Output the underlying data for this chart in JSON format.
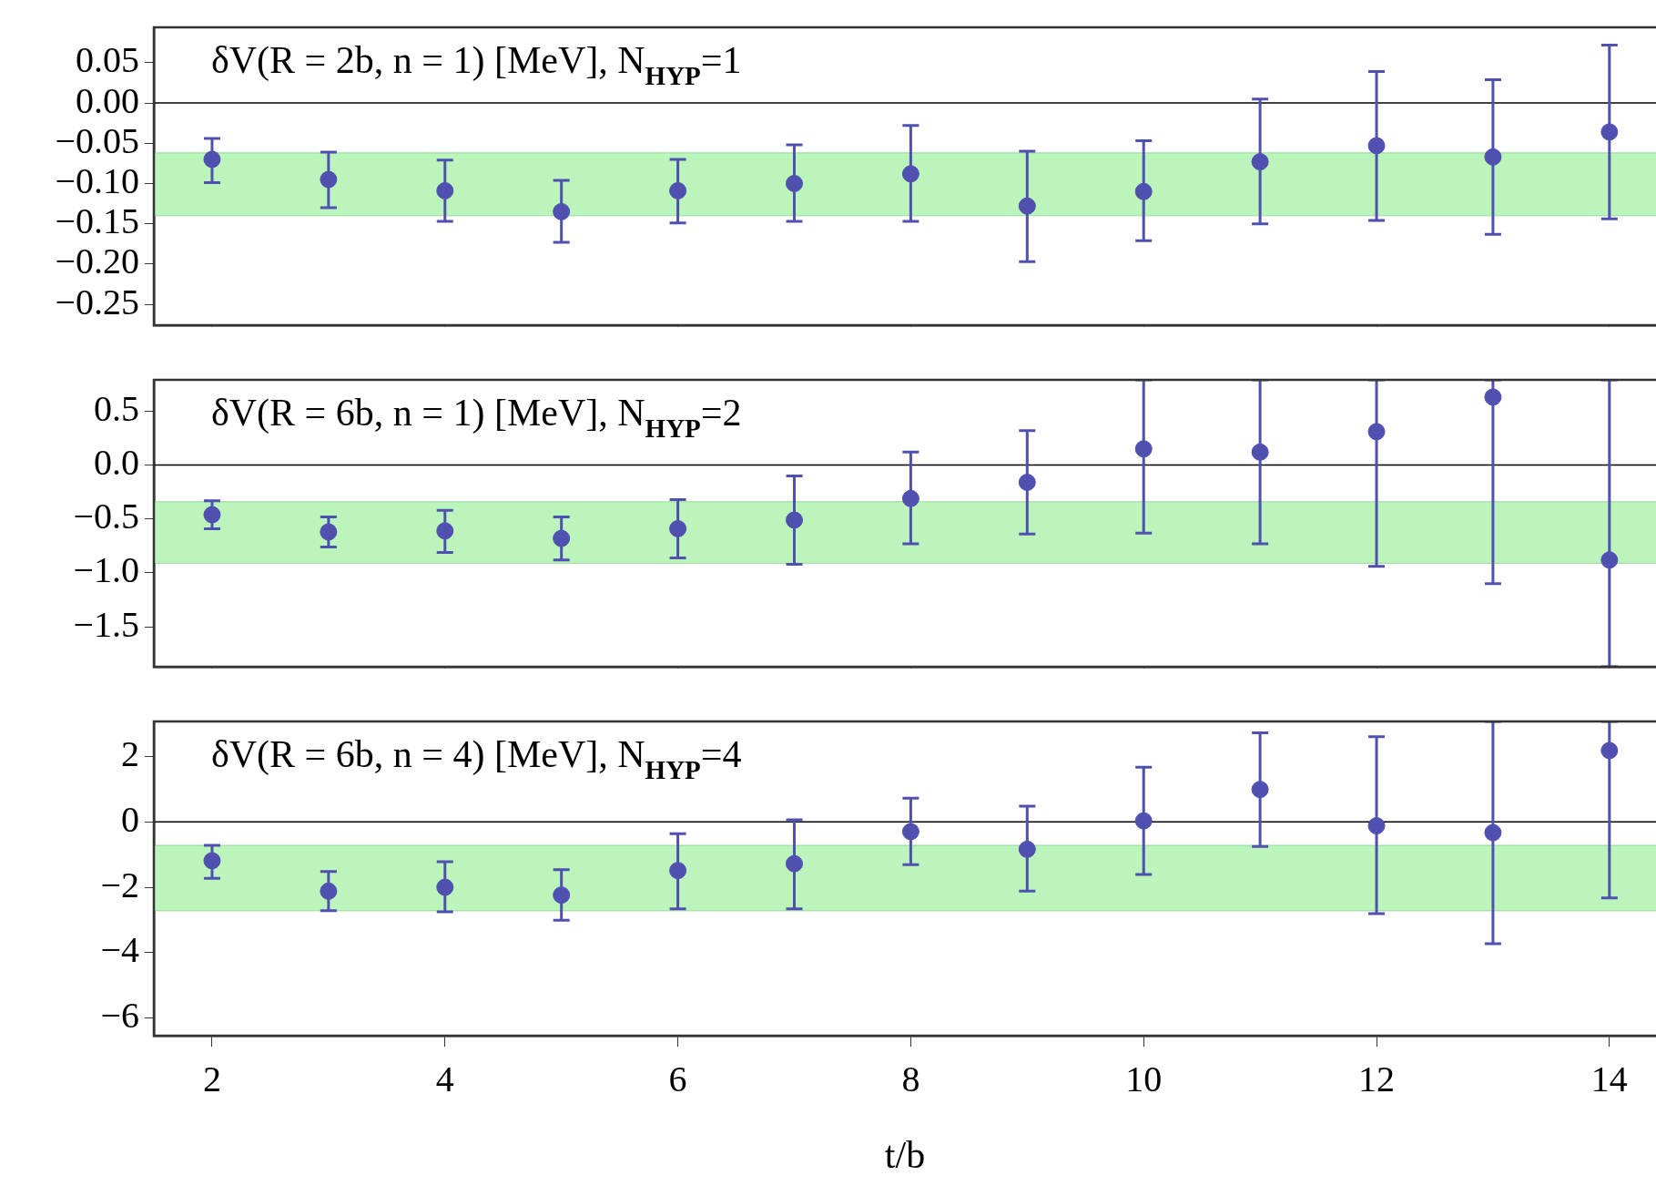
{
  "chart_data": [
    {
      "type": "scatter",
      "title": "δV(R = 2b, n = 1) [MeV], N$_{HYP}$=1",
      "xlim": [
        1.5,
        14.4
      ],
      "xticks": [
        2,
        4,
        6,
        8,
        10,
        12,
        14
      ],
      "ylim": [
        -0.276,
        0.094
      ],
      "yticks": [
        {
          "value": 0.05,
          "label": "0.05"
        },
        {
          "value": 0,
          "label": "0.00"
        },
        {
          "value": -0.05,
          "label": "−0.05"
        },
        {
          "value": -0.1,
          "label": "−0.10"
        },
        {
          "value": -0.15,
          "label": "−0.15"
        },
        {
          "value": -0.2,
          "label": "−0.20"
        },
        {
          "value": -0.25,
          "label": "−0.25"
        }
      ],
      "tick_labels": "y",
      "marker": "circle",
      "ref_lines": [
        {
          "axis": "y",
          "value": 0,
          "color": "#000000"
        }
      ],
      "bands": [
        {
          "axis": "y",
          "from": -0.14,
          "to": -0.062,
          "color": "#bbf5bb"
        }
      ],
      "series": [
        {
          "color": "#5050b0",
          "x": [
            2,
            3,
            4,
            5,
            6,
            7,
            8,
            9,
            10,
            11,
            12,
            13,
            14
          ],
          "values": [
            -0.07,
            -0.095,
            -0.109,
            -0.135,
            -0.109,
            -0.1,
            -0.088,
            -0.128,
            -0.11,
            -0.073,
            -0.053,
            -0.067,
            -0.036
          ],
          "errors": [
            [
              -0.099,
              -0.044
            ],
            [
              -0.13,
              -0.061
            ],
            [
              -0.147,
              -0.071
            ],
            [
              -0.173,
              -0.096
            ],
            [
              -0.149,
              -0.07
            ],
            [
              -0.147,
              -0.052
            ],
            [
              -0.147,
              -0.028
            ],
            [
              -0.197,
              -0.06
            ],
            [
              -0.171,
              -0.047
            ],
            [
              -0.15,
              0.005
            ],
            [
              -0.146,
              0.039
            ],
            [
              -0.163,
              0.029
            ],
            [
              -0.144,
              0.072
            ]
          ]
        }
      ]
    },
    {
      "type": "scatter",
      "title": "δV(R = 6b, n = 1) [MeV], N$_{HYP}$=2",
      "xlim": [
        1.5,
        14.4
      ],
      "xticks": [
        2,
        4,
        6,
        8,
        10,
        12,
        14
      ],
      "ylim": [
        -1.87,
        0.79
      ],
      "yticks": [
        {
          "value": 0.5,
          "label": "0.5"
        },
        {
          "value": 0,
          "label": "0.0"
        },
        {
          "value": -0.5,
          "label": "−0.5"
        },
        {
          "value": -1,
          "label": "−1.0"
        },
        {
          "value": -1.5,
          "label": "−1.5"
        }
      ],
      "tick_labels": "y",
      "marker": "circle",
      "ref_lines": [
        {
          "axis": "y",
          "value": 0,
          "color": "#000000"
        }
      ],
      "bands": [
        {
          "axis": "y",
          "from": -0.91,
          "to": -0.34,
          "color": "#bbf5bb"
        }
      ],
      "series": [
        {
          "color": "#5050b0",
          "x": [
            2,
            3,
            4,
            5,
            6,
            7,
            8,
            9,
            10,
            11,
            12,
            13,
            14
          ],
          "values": [
            -0.46,
            -0.62,
            -0.61,
            -0.68,
            -0.59,
            -0.51,
            -0.31,
            -0.16,
            0.15,
            0.12,
            0.31,
            0.63,
            -0.88
          ],
          "errors": [
            [
              -0.59,
              -0.33
            ],
            [
              -0.76,
              -0.48
            ],
            [
              -0.81,
              -0.42
            ],
            [
              -0.88,
              -0.48
            ],
            [
              -0.86,
              -0.32
            ],
            [
              -0.92,
              -0.1
            ],
            [
              -0.73,
              0.12
            ],
            [
              -0.64,
              0.32
            ],
            [
              -0.63,
              0.79
            ],
            [
              -0.73,
              0.79
            ],
            [
              -0.94,
              0.79
            ],
            [
              -1.1,
              0.79
            ],
            [
              -1.87,
              0.79
            ]
          ]
        }
      ]
    },
    {
      "type": "scatter",
      "title": "δV(R = 6b, n = 4) [MeV], N$_{HYP}$=4",
      "xlabel": "t/b",
      "xlim": [
        1.5,
        14.4
      ],
      "xticks": [
        2,
        4,
        6,
        8,
        10,
        12,
        14
      ],
      "ylim": [
        -6.54,
        3.07
      ],
      "yticks": [
        2,
        0,
        {
          "value": -2,
          "label": "−2"
        },
        {
          "value": -4,
          "label": "−4"
        },
        {
          "value": -6,
          "label": "−6"
        }
      ],
      "marker": "circle",
      "ref_lines": [
        {
          "axis": "y",
          "value": 0,
          "color": "#000000"
        }
      ],
      "bands": [
        {
          "axis": "y",
          "from": -2.72,
          "to": -0.72,
          "color": "#bbf5bb"
        }
      ],
      "series": [
        {
          "color": "#5050b0",
          "x": [
            2,
            3,
            4,
            5,
            6,
            7,
            8,
            9,
            10,
            11,
            12,
            13,
            14
          ],
          "values": [
            -1.19,
            -2.12,
            -2.0,
            -2.24,
            -1.49,
            -1.28,
            -0.3,
            -0.84,
            0.03,
            0.99,
            -0.12,
            -0.33,
            2.18
          ],
          "errors": [
            [
              -1.73,
              -0.72
            ],
            [
              -2.72,
              -1.52
            ],
            [
              -2.75,
              -1.22
            ],
            [
              -3.01,
              -1.46
            ],
            [
              -2.66,
              -0.36
            ],
            [
              -2.66,
              0.06
            ],
            [
              -1.31,
              0.72
            ],
            [
              -2.12,
              0.48
            ],
            [
              -1.61,
              1.67
            ],
            [
              -0.75,
              2.72
            ],
            [
              -2.81,
              2.6
            ],
            [
              -3.73,
              3.07
            ],
            [
              -2.33,
              3.07
            ]
          ]
        }
      ]
    }
  ]
}
